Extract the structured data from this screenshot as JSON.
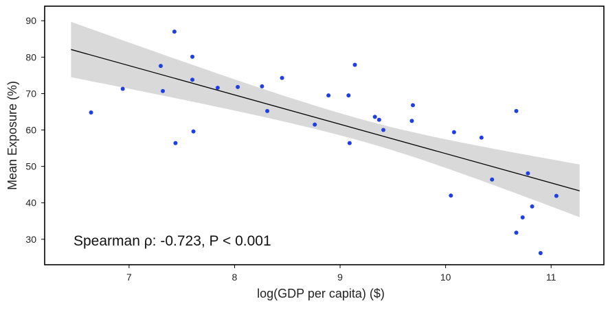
{
  "chart_data": {
    "type": "scatter",
    "xlabel": "log(GDP per capita) ($)",
    "ylabel": "Mean Exposure (%)",
    "xlim": [
      6.2,
      11.5
    ],
    "ylim": [
      23,
      94
    ],
    "xticks": [
      7,
      8,
      9,
      10,
      11
    ],
    "yticks": [
      30,
      40,
      50,
      60,
      70,
      80,
      90
    ],
    "annotation": "Spearman ρ: -0.723, P < 0.001",
    "grid": false,
    "legend": "none",
    "colors": {
      "points": "#1f3fe0",
      "fit_line": "#000000",
      "confidence_band": "#d9d9d9",
      "frame": "#000000"
    },
    "regression": {
      "x_range": [
        6.45,
        11.27
      ],
      "y_at_start": 82.1,
      "y_at_end": 43.3,
      "band_lower_at_start": 75.1,
      "band_upper_at_start": 90.3,
      "band_lower_at_end": 36.6,
      "band_upper_at_end": 51.1
    },
    "x": [
      6.64,
      6.94,
      7.3,
      7.32,
      7.43,
      7.44,
      7.6,
      7.6,
      7.61,
      7.84,
      8.03,
      8.26,
      8.31,
      8.45,
      8.76,
      8.89,
      9.08,
      9.09,
      9.14,
      9.33,
      9.37,
      9.41,
      9.68,
      9.69,
      10.05,
      10.08,
      10.34,
      10.44,
      10.67,
      10.67,
      10.73,
      10.78,
      10.82,
      10.9,
      11.05
    ],
    "y": [
      64.8,
      71.3,
      77.6,
      70.7,
      87.0,
      56.4,
      80.1,
      73.8,
      59.6,
      71.6,
      71.8,
      72.0,
      65.2,
      74.3,
      61.5,
      69.5,
      69.5,
      56.4,
      77.9,
      63.6,
      62.8,
      60.0,
      62.5,
      66.8,
      42.0,
      59.4,
      57.9,
      46.4,
      65.2,
      31.8,
      36.0,
      48.1,
      39.0,
      26.2,
      41.9
    ]
  }
}
